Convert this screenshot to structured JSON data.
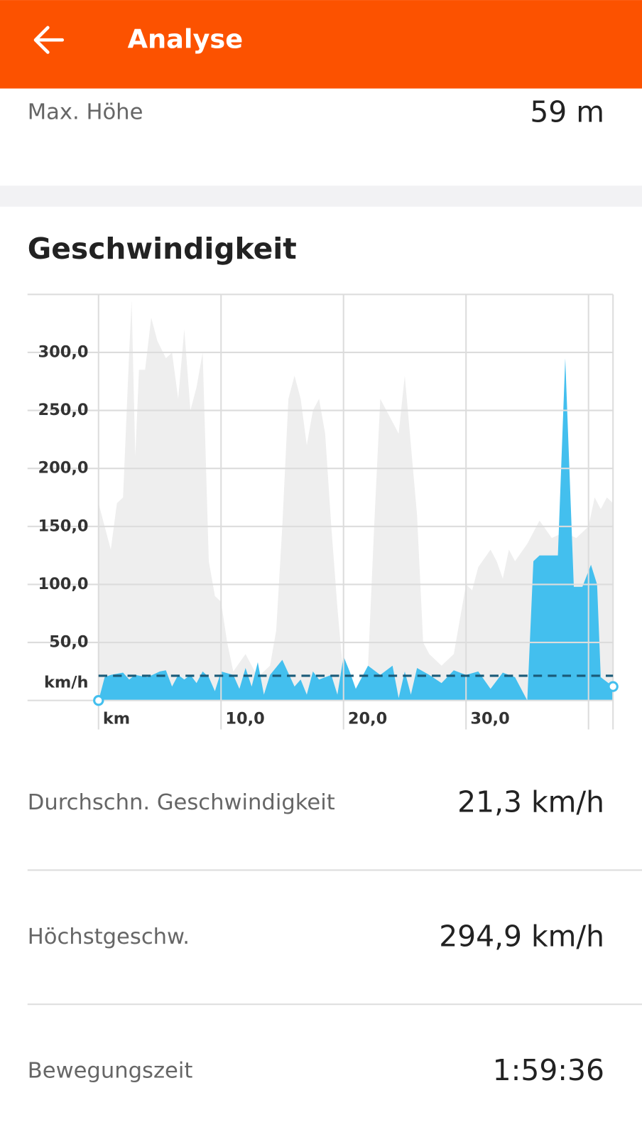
{
  "header": {
    "title": "Analyse"
  },
  "elevation_row": {
    "label": "Max. Höhe",
    "value": "59 m"
  },
  "section_title": "Geschwindigkeit",
  "chart_data": {
    "type": "area",
    "y_label": "km/h",
    "xlim": [
      0,
      42
    ],
    "ylim": [
      0,
      350
    ],
    "xticks": [
      {
        "value": 0,
        "label": "km"
      },
      {
        "value": 10,
        "label": "10,0"
      },
      {
        "value": 20,
        "label": "20,0"
      },
      {
        "value": 30,
        "label": "30,0"
      },
      {
        "value": 40,
        "label": null
      }
    ],
    "yticks": [
      {
        "value": 50,
        "label": "50,0"
      },
      {
        "value": 100,
        "label": "100,0"
      },
      {
        "value": 150,
        "label": "150,0"
      },
      {
        "value": 200,
        "label": "200,0"
      },
      {
        "value": 250,
        "label": "250,0"
      },
      {
        "value": 300,
        "label": "300,0"
      }
    ],
    "grid": true,
    "average_line": 21.3,
    "average_color": "#1a5a78",
    "series": [
      {
        "color": "#eeeeee",
        "x": [
          0,
          0.5,
          1,
          1.5,
          2,
          2.5,
          2.7,
          3,
          3.3,
          3.8,
          4.3,
          4.8,
          5.5,
          6,
          6.5,
          7,
          7.5,
          8,
          8.5,
          9,
          9.5,
          10,
          10.5,
          11,
          12,
          13,
          14,
          14.5,
          15,
          15.5,
          16,
          16.5,
          17,
          17.5,
          18,
          18.5,
          19,
          19.5,
          20,
          21,
          22,
          22.5,
          23,
          23.5,
          24,
          24.5,
          25,
          25.5,
          26,
          26.5,
          27,
          28,
          29,
          29.5,
          30,
          30.5,
          31,
          32,
          32.5,
          33,
          33.5,
          34,
          35,
          36,
          37,
          38,
          39,
          40,
          40.5,
          41,
          41.5,
          42
        ],
        "values": [
          170,
          150,
          130,
          170,
          175,
          300,
          345,
          210,
          285,
          285,
          330,
          310,
          295,
          300,
          260,
          320,
          250,
          270,
          300,
          120,
          90,
          85,
          50,
          25,
          40,
          20,
          30,
          60,
          150,
          260,
          280,
          260,
          220,
          250,
          260,
          230,
          150,
          80,
          20,
          10,
          30,
          150,
          260,
          250,
          240,
          230,
          280,
          220,
          160,
          50,
          40,
          30,
          40,
          70,
          100,
          95,
          115,
          130,
          120,
          105,
          130,
          120,
          135,
          155,
          140,
          145,
          140,
          150,
          175,
          165,
          175,
          170
        ]
      },
      {
        "color": "#43bfee",
        "x": [
          0,
          0.5,
          1,
          2,
          2.5,
          3,
          4,
          5,
          5.5,
          6,
          6.5,
          7,
          7.5,
          8,
          8.5,
          9,
          9.5,
          10,
          11,
          11.5,
          12,
          12.5,
          13,
          13.5,
          14,
          15,
          16,
          16.5,
          17,
          17.5,
          18,
          19,
          19.5,
          20,
          20.5,
          21,
          22,
          23,
          24,
          24.5,
          25,
          25.5,
          26,
          27,
          28,
          29,
          30,
          31,
          32,
          33,
          34,
          35,
          35.5,
          36,
          37.5,
          38.1,
          38.8,
          39.5,
          40.2,
          40.7,
          41,
          42
        ],
        "values": [
          0,
          20,
          22,
          24,
          18,
          22,
          20,
          25,
          26,
          12,
          22,
          18,
          22,
          15,
          25,
          20,
          8,
          25,
          22,
          10,
          28,
          12,
          33,
          5,
          22,
          35,
          12,
          18,
          5,
          25,
          18,
          22,
          5,
          38,
          25,
          10,
          30,
          22,
          30,
          2,
          25,
          5,
          28,
          22,
          15,
          26,
          22,
          25,
          10,
          24,
          20,
          0,
          120,
          125,
          125,
          295,
          98,
          98,
          117,
          100,
          20,
          12
        ]
      }
    ]
  },
  "speed_stats": [
    {
      "label": "Durchschn. Geschwindigkeit",
      "value": "21,3 km/h"
    },
    {
      "label": "Höchstgeschw.",
      "value": "294,9 km/h"
    },
    {
      "label": "Bewegungszeit",
      "value": "1:59:36"
    }
  ]
}
